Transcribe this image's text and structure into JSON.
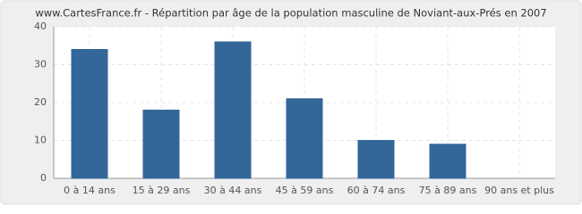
{
  "chart_data": {
    "type": "bar",
    "title": "www.CartesFrance.fr - Répartition par âge de la population masculine de Noviant-aux-Prés en 2007",
    "categories": [
      "0 à 14 ans",
      "15 à 29 ans",
      "30 à 44 ans",
      "45 à 59 ans",
      "60 à 74 ans",
      "75 à 89 ans",
      "90 ans et plus"
    ],
    "values": [
      34,
      18,
      36,
      21,
      10,
      9,
      0
    ],
    "color": "#336699",
    "ylim": [
      0,
      40
    ],
    "yticks": [
      0,
      10,
      20,
      30,
      40
    ],
    "grid": true
  }
}
